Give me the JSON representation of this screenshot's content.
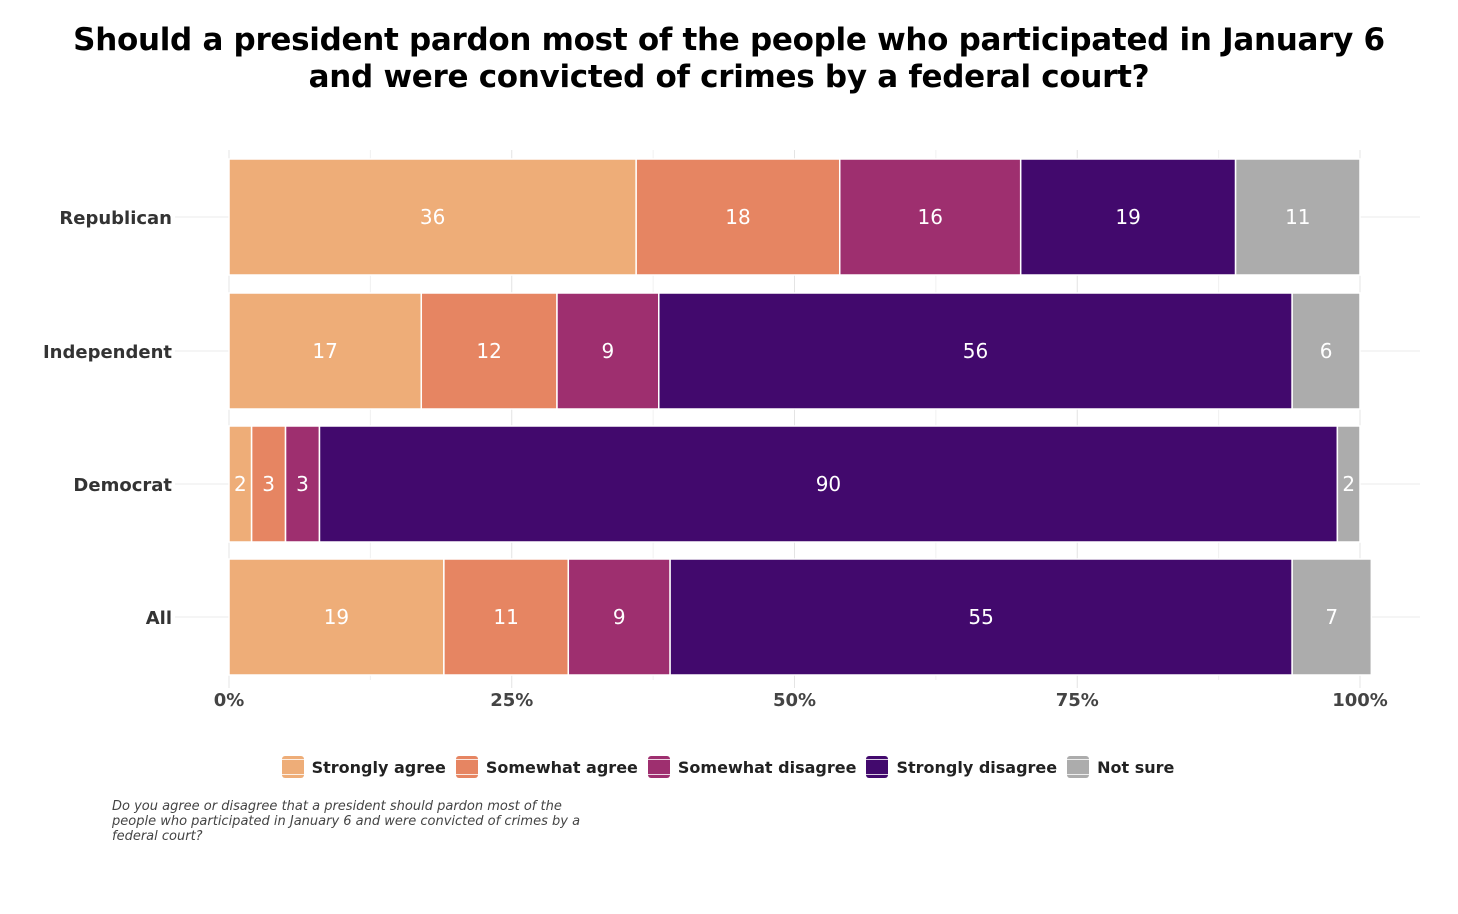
{
  "chart_data": {
    "type": "bar",
    "orientation": "horizontal",
    "stacked": true,
    "title_lines": [
      "Should a president pardon most of the people who participated in January 6",
      "and were convicted of crimes by a federal court?"
    ],
    "categories": [
      "Republican",
      "Independent",
      "Democrat",
      "All"
    ],
    "series": [
      {
        "name": "Strongly agree",
        "color": "#EEAD78",
        "values": [
          36,
          17,
          2,
          19
        ]
      },
      {
        "name": "Somewhat agree",
        "color": "#E68562",
        "values": [
          18,
          12,
          3,
          11
        ]
      },
      {
        "name": "Somewhat disagree",
        "color": "#9E2F6F",
        "values": [
          16,
          9,
          3,
          9
        ]
      },
      {
        "name": "Strongly disagree",
        "color": "#42096D",
        "values": [
          19,
          56,
          90,
          55
        ]
      },
      {
        "name": "Not sure",
        "color": "#ACACAC",
        "values": [
          11,
          6,
          2,
          7
        ]
      }
    ],
    "xlim": [
      0,
      100
    ],
    "x_ticks": [
      "0%",
      "25%",
      "50%",
      "75%",
      "100%"
    ],
    "x_tick_values": [
      0,
      25,
      50,
      75,
      100
    ],
    "xlabel": "",
    "ylabel": "",
    "grid": true,
    "legend_position": "bottom",
    "caption": "Do you agree or disagree that a president should pardon most of the people who participated in January 6 and were convicted of crimes by a federal court?"
  }
}
